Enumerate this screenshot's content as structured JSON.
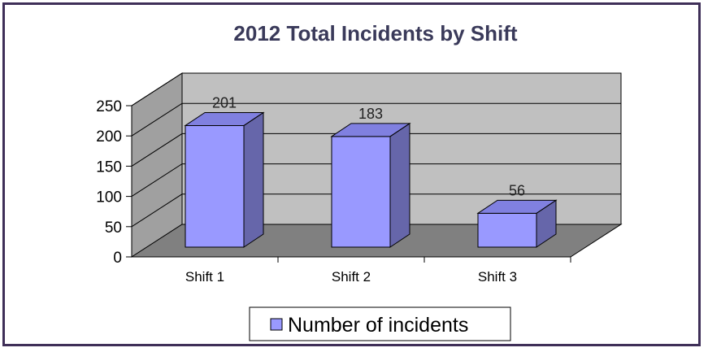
{
  "chart_data": {
    "type": "bar",
    "title": "2012 Total Incidents by Shift",
    "categories": [
      "Shift 1",
      "Shift 2",
      "Shift 3"
    ],
    "series": [
      {
        "name": "Number of incidents",
        "values": [
          201,
          183,
          56
        ]
      }
    ],
    "data_labels": [
      "201",
      "183",
      "56"
    ],
    "yticks": [
      "0",
      "50",
      "100",
      "150",
      "200",
      "250"
    ],
    "ylim": [
      0,
      250
    ],
    "grid": true,
    "legend_placement": "bottom",
    "colors": {
      "bar_front": "#9999ff",
      "bar_side": "#6666aa",
      "bar_top": "#8080e0",
      "wall": "#c0c0c0",
      "floor": "#808080",
      "frame": "#3f2f58"
    }
  }
}
